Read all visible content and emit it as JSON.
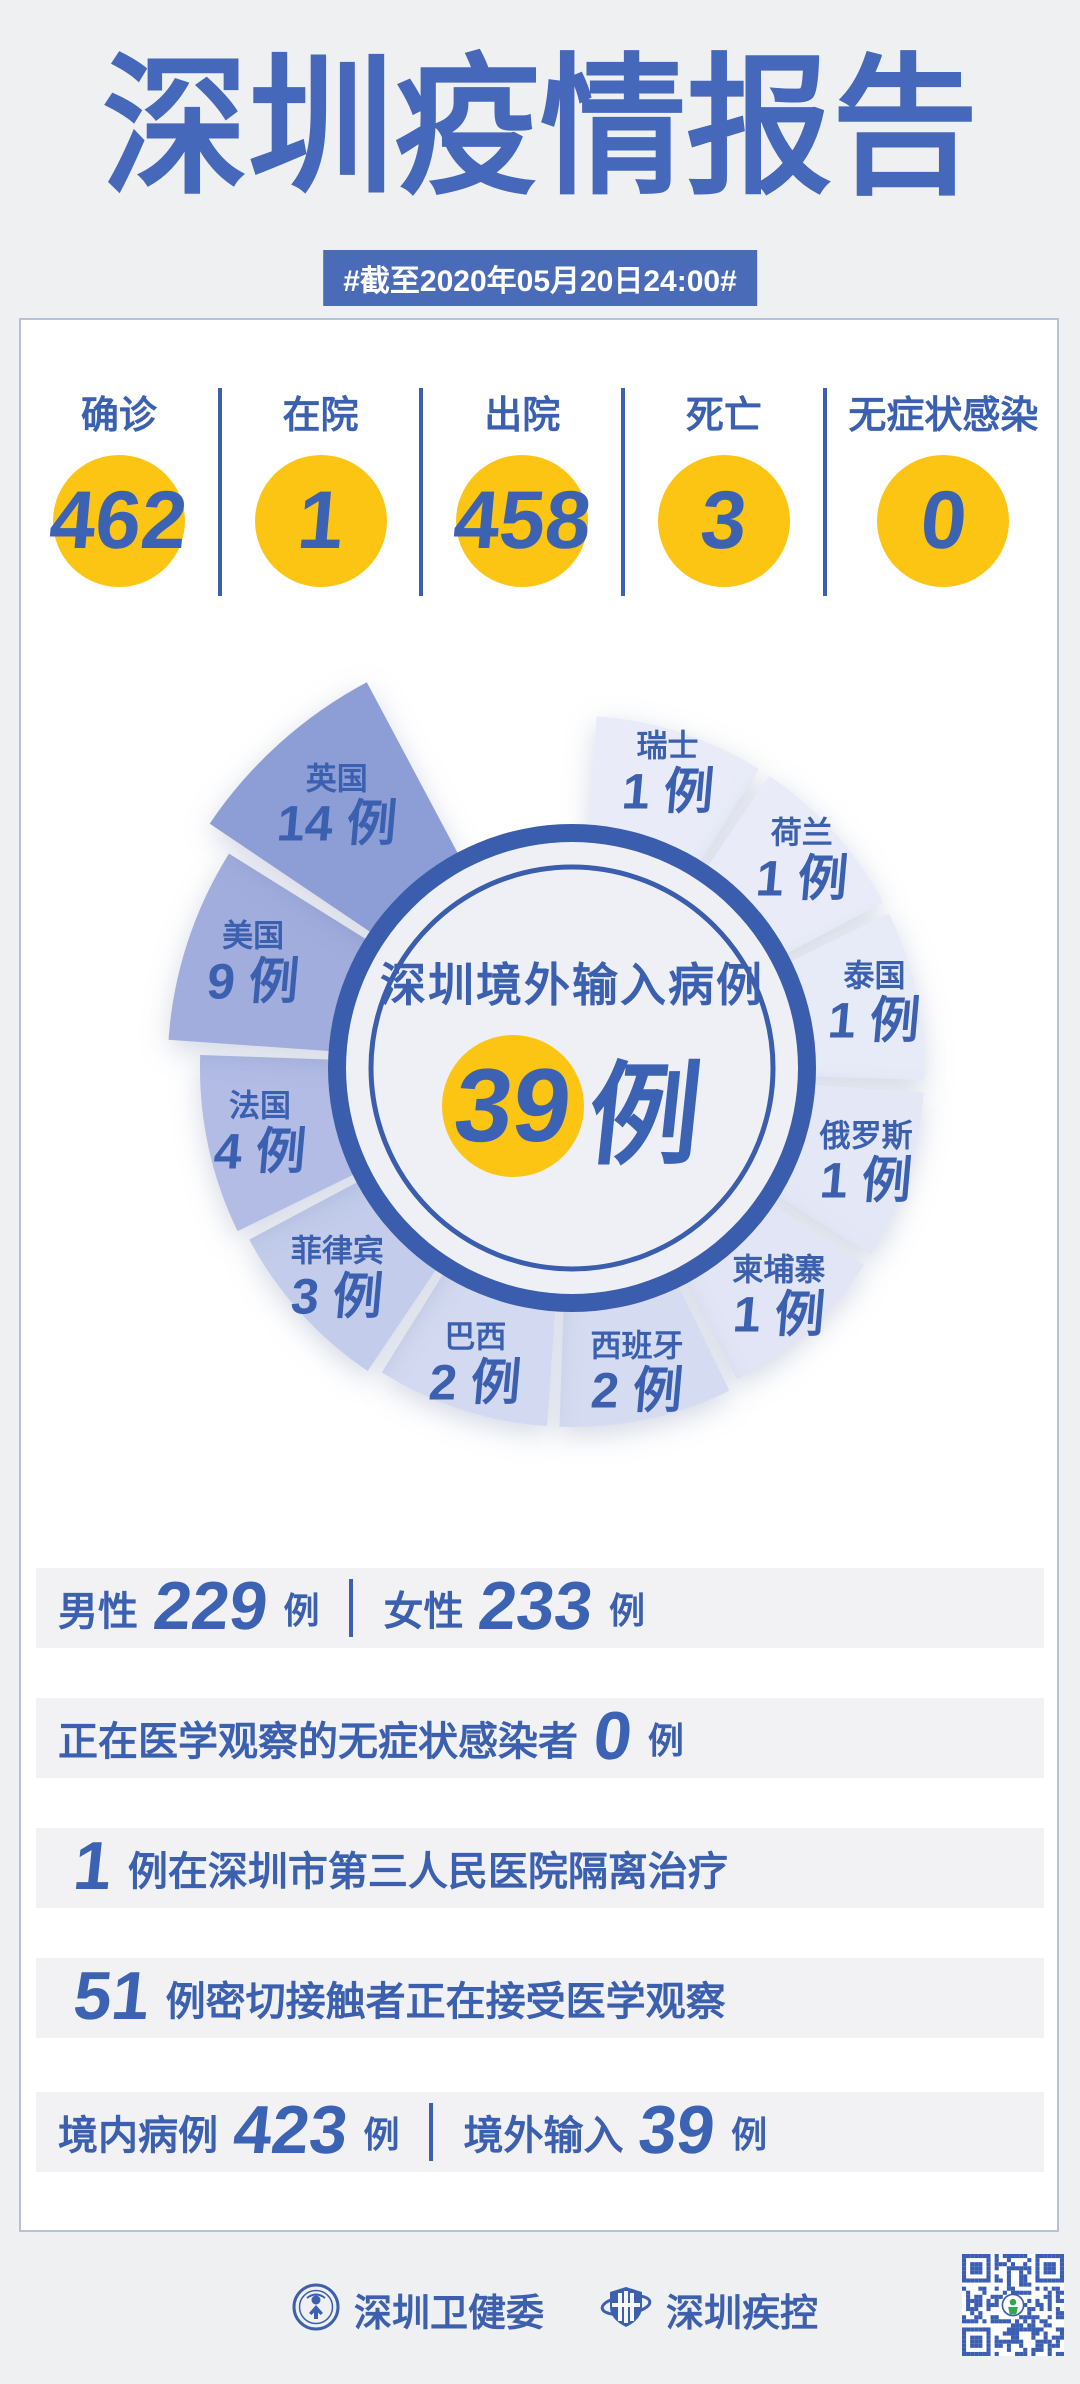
{
  "header": {
    "title": "深圳疫情报告",
    "date_badge": "#截至2020年05月20日24:00#"
  },
  "summary": {
    "items": [
      {
        "label": "确诊",
        "value": "462"
      },
      {
        "label": "在院",
        "value": "1"
      },
      {
        "label": "出院",
        "value": "458"
      },
      {
        "label": "死亡",
        "value": "3"
      },
      {
        "label": "无症状感染",
        "value": "0"
      }
    ]
  },
  "chart_data": {
    "type": "pie",
    "variant": "nightingale-rose",
    "title": "深圳境外输入病例",
    "center_value": "39",
    "center_unit": "例",
    "unit": "例",
    "legend_position": "on-wedge",
    "segments": [
      {
        "name": "瑞士",
        "value": 1,
        "color": "#e9ecf8"
      },
      {
        "name": "荷兰",
        "value": 1,
        "color": "#e9ecf8"
      },
      {
        "name": "泰国",
        "value": 1,
        "color": "#e7eaf7"
      },
      {
        "name": "俄罗斯",
        "value": 1,
        "color": "#e4e8f6"
      },
      {
        "name": "柬埔寨",
        "value": 1,
        "color": "#e1e5f5"
      },
      {
        "name": "西班牙",
        "value": 2,
        "color": "#d5dcf1"
      },
      {
        "name": "巴西",
        "value": 2,
        "color": "#d2d9f0"
      },
      {
        "name": "菲律宾",
        "value": 3,
        "color": "#c3cceb"
      },
      {
        "name": "法国",
        "value": 4,
        "color": "#b2bce5"
      },
      {
        "name": "美国",
        "value": 9,
        "color": "#a0addd"
      },
      {
        "name": "英国",
        "value": 14,
        "color": "#8c9ed5"
      }
    ],
    "layout_hint": {
      "clockwise_from_top": true,
      "start_angle_deg": 4,
      "slot_deg": 30,
      "wedge_deg": 28,
      "empty_slot_at_top": true
    }
  },
  "details": {
    "rows": [
      {
        "parts": [
          {
            "type": "label",
            "text": "男性"
          },
          {
            "type": "number",
            "text": "229"
          },
          {
            "type": "unit",
            "text": "例"
          },
          {
            "type": "divider"
          },
          {
            "type": "label",
            "text": "女性"
          },
          {
            "type": "number",
            "text": "233"
          },
          {
            "type": "unit",
            "text": "例"
          }
        ]
      },
      {
        "parts": [
          {
            "type": "label",
            "text": "正在医学观察的无症状感染者"
          },
          {
            "type": "number",
            "text": "0"
          },
          {
            "type": "unit",
            "text": "例"
          }
        ]
      },
      {
        "parts": [
          {
            "type": "number",
            "text": "1"
          },
          {
            "type": "label",
            "text": "例在深圳市第三人民医院隔离治疗"
          }
        ]
      },
      {
        "parts": [
          {
            "type": "number",
            "text": "51"
          },
          {
            "type": "label",
            "text": "例密切接触者正在接受医学观察"
          }
        ]
      },
      {
        "parts": [
          {
            "type": "label",
            "text": "境内病例"
          },
          {
            "type": "number",
            "text": "423"
          },
          {
            "type": "unit",
            "text": "例"
          },
          {
            "type": "divider"
          },
          {
            "type": "label",
            "text": "境外输入"
          },
          {
            "type": "number",
            "text": "39"
          },
          {
            "type": "unit",
            "text": "例"
          }
        ]
      }
    ]
  },
  "footer": {
    "orgs": [
      {
        "name": "深圳卫健委",
        "icon": "health-commission-seal-icon"
      },
      {
        "name": "深圳疾控",
        "icon": "cdc-shield-icon"
      }
    ],
    "qr": "qr-code"
  },
  "colors": {
    "title_blue": "#4668ba",
    "primary_blue": "#3c60b0",
    "number_blue": "#3c62b4",
    "ring_blue": "#3a5dad",
    "accent_yellow": "#fcc413",
    "badge_bg": "#4a6cb8",
    "page_bg": "#eff0f2",
    "card_border": "#b7c2d8",
    "strip_bg": "#f2f2f4",
    "center_fill": "#eef0f5",
    "qr_blue": "#3b5db2",
    "qr_logo_green": "#2fa84f"
  }
}
